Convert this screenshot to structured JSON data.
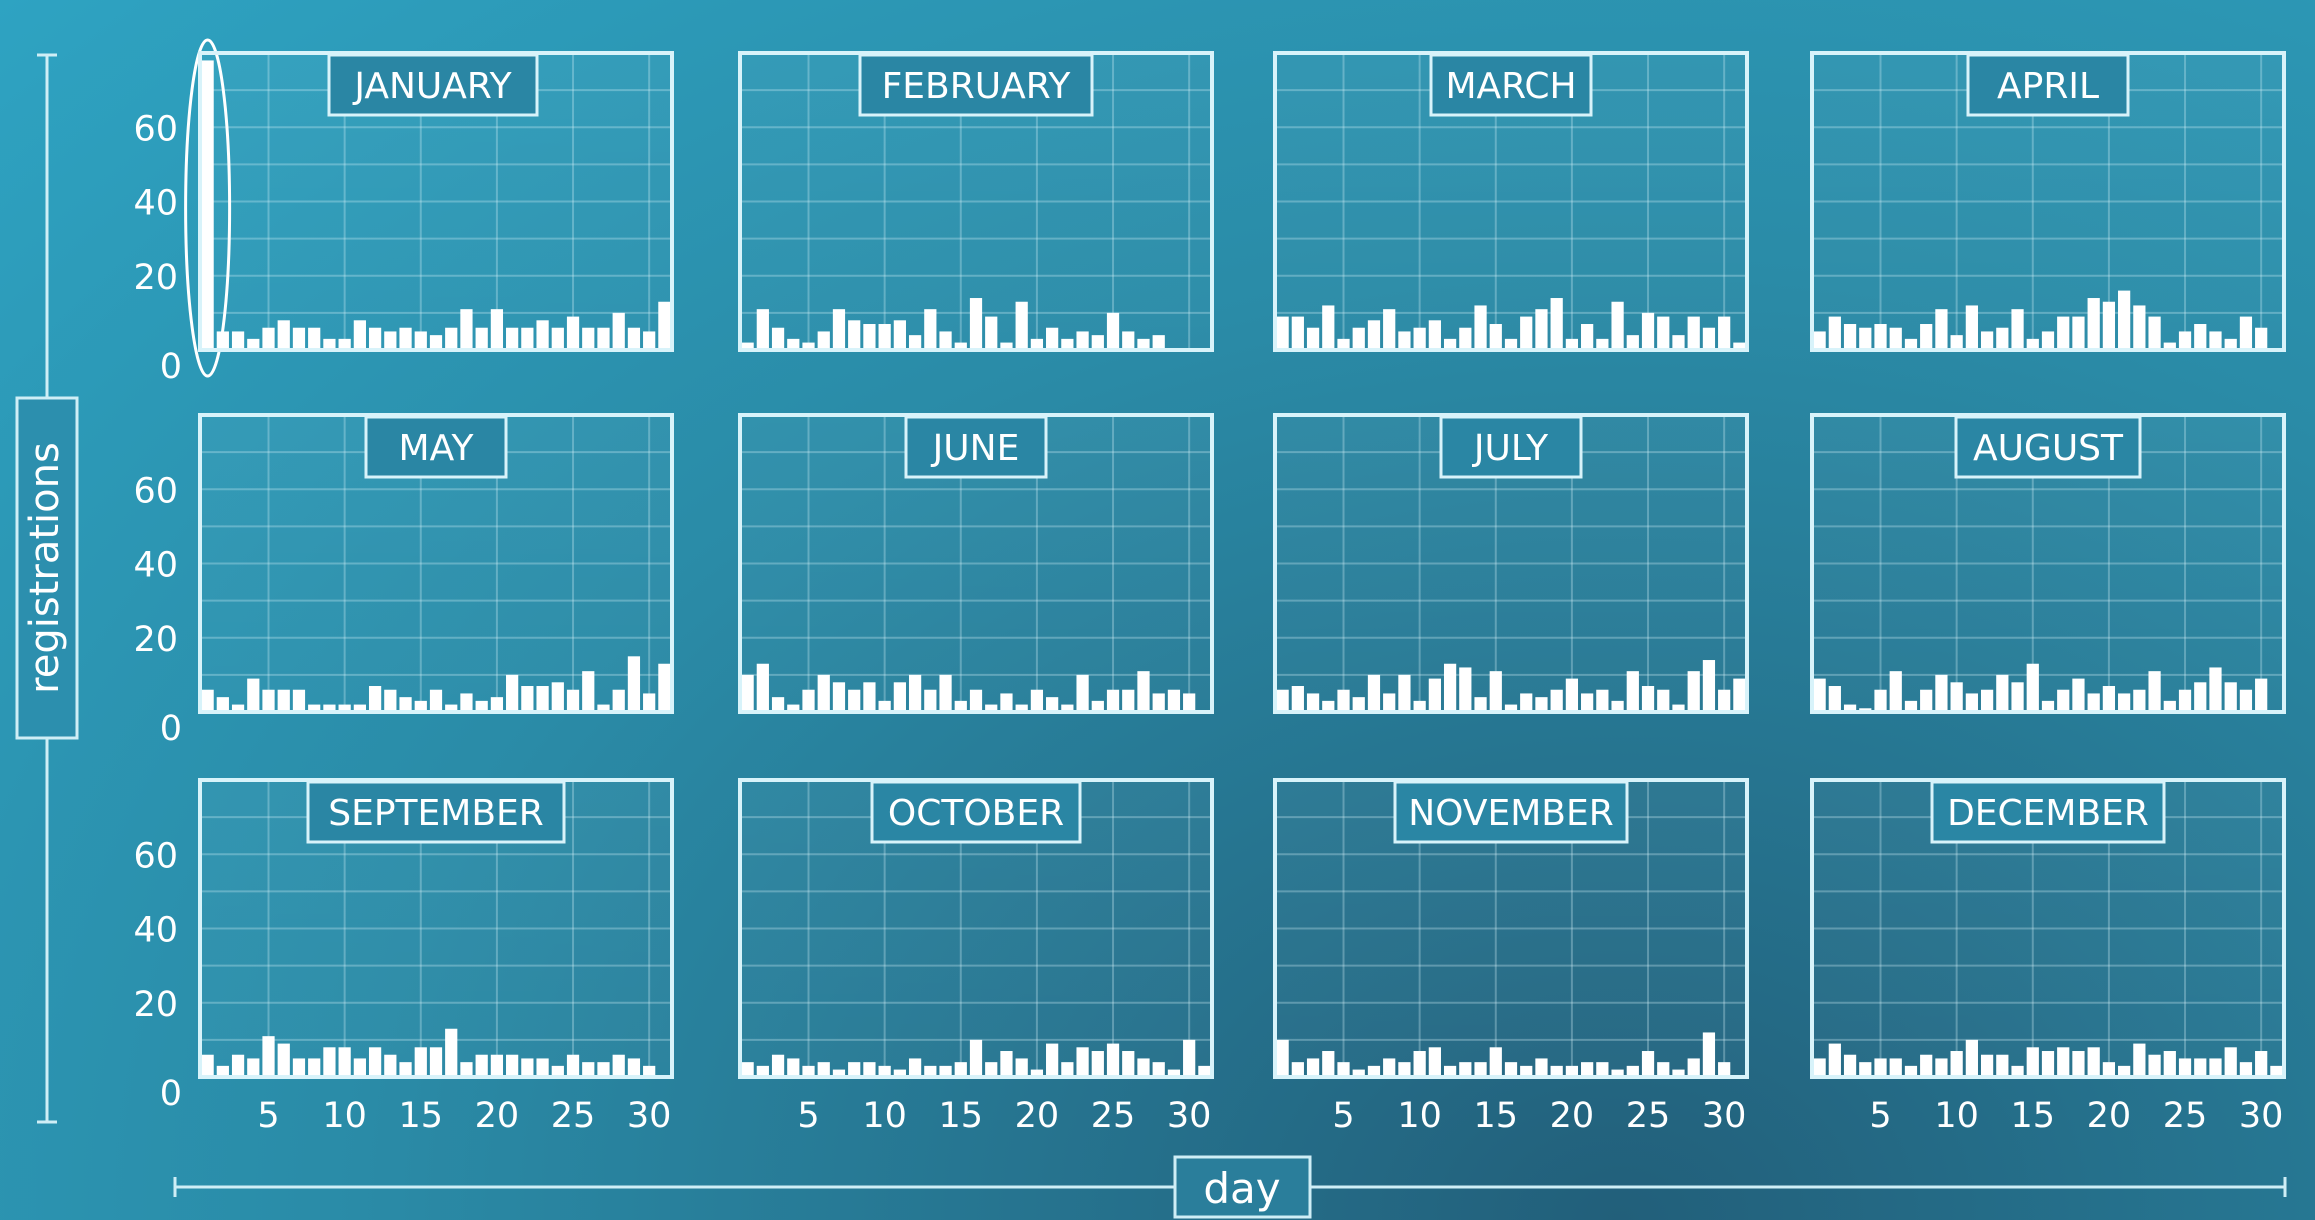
{
  "chart_data": {
    "type": "bar",
    "ylabel": "registrations",
    "xlabel": "day",
    "ylim": [
      0,
      80
    ],
    "yticks": [
      0,
      20,
      40,
      60
    ],
    "xticks": [
      5,
      10,
      15,
      20,
      25,
      30
    ],
    "grid": true,
    "panels": [
      {
        "title": "JANUARY",
        "days": 31,
        "values": [
          78,
          5,
          5,
          3,
          6,
          8,
          6,
          6,
          3,
          3,
          8,
          6,
          5,
          6,
          5,
          4,
          6,
          11,
          6,
          11,
          6,
          6,
          8,
          6,
          9,
          6,
          6,
          10,
          6,
          5,
          13
        ],
        "highlight_day": 1
      },
      {
        "title": "FEBRUARY",
        "days": 28,
        "values": [
          2,
          11,
          6,
          3,
          2,
          5,
          11,
          8,
          7,
          7,
          8,
          4,
          11,
          5,
          2,
          14,
          9,
          2,
          13,
          3,
          6,
          3,
          5,
          4,
          10,
          5,
          3,
          4
        ]
      },
      {
        "title": "MARCH",
        "days": 31,
        "values": [
          9,
          9,
          6,
          12,
          3,
          6,
          8,
          11,
          5,
          6,
          8,
          3,
          6,
          12,
          7,
          3,
          9,
          11,
          14,
          3,
          7,
          3,
          13,
          4,
          10,
          9,
          4,
          9,
          6,
          9,
          2
        ]
      },
      {
        "title": "APRIL",
        "days": 30,
        "values": [
          5,
          9,
          7,
          6,
          7,
          6,
          3,
          7,
          11,
          4,
          12,
          5,
          6,
          11,
          3,
          5,
          9,
          9,
          14,
          13,
          16,
          12,
          9,
          2,
          5,
          7,
          5,
          3,
          9,
          6
        ]
      },
      {
        "title": "MAY",
        "days": 31,
        "values": [
          6,
          4,
          2,
          9,
          6,
          6,
          6,
          2,
          2,
          2,
          2,
          7,
          6,
          4,
          3,
          6,
          2,
          5,
          3,
          4,
          10,
          7,
          7,
          8,
          6,
          11,
          2,
          6,
          15,
          5,
          13
        ]
      },
      {
        "title": "JUNE",
        "days": 30,
        "values": [
          10,
          13,
          4,
          2,
          6,
          10,
          8,
          6,
          8,
          3,
          8,
          10,
          6,
          10,
          3,
          6,
          2,
          5,
          2,
          6,
          4,
          2,
          10,
          3,
          6,
          6,
          11,
          5,
          6,
          5
        ]
      },
      {
        "title": "JULY",
        "days": 31,
        "values": [
          6,
          7,
          5,
          3,
          6,
          4,
          10,
          5,
          10,
          3,
          9,
          13,
          12,
          4,
          11,
          2,
          5,
          4,
          6,
          9,
          5,
          6,
          3,
          11,
          7,
          6,
          2,
          11,
          14,
          6,
          9
        ]
      },
      {
        "title": "AUGUST",
        "days": 30,
        "values": [
          9,
          7,
          2,
          1,
          6,
          11,
          3,
          6,
          10,
          8,
          5,
          6,
          10,
          8,
          13,
          3,
          6,
          9,
          5,
          7,
          5,
          6,
          11,
          3,
          6,
          8,
          12,
          8,
          6,
          9
        ]
      },
      {
        "title": "SEPTEMBER",
        "days": 30,
        "values": [
          6,
          3,
          6,
          5,
          11,
          9,
          5,
          5,
          8,
          8,
          5,
          8,
          6,
          4,
          8,
          8,
          13,
          4,
          6,
          6,
          6,
          5,
          5,
          3,
          6,
          4,
          4,
          6,
          5,
          3
        ]
      },
      {
        "title": "OCTOBER",
        "days": 31,
        "values": [
          4,
          3,
          6,
          5,
          3,
          4,
          2,
          4,
          4,
          3,
          2,
          5,
          3,
          3,
          4,
          10,
          4,
          7,
          5,
          2,
          9,
          4,
          8,
          7,
          9,
          7,
          5,
          4,
          2,
          10,
          3
        ]
      },
      {
        "title": "NOVEMBER",
        "days": 30,
        "values": [
          10,
          4,
          5,
          7,
          4,
          2,
          3,
          5,
          4,
          7,
          8,
          3,
          4,
          4,
          8,
          4,
          3,
          5,
          3,
          3,
          4,
          4,
          2,
          3,
          7,
          4,
          2,
          5,
          12,
          4
        ]
      },
      {
        "title": "DECEMBER",
        "days": 31,
        "values": [
          5,
          9,
          6,
          4,
          5,
          5,
          3,
          6,
          5,
          7,
          10,
          6,
          6,
          3,
          8,
          7,
          8,
          7,
          8,
          4,
          3,
          9,
          6,
          7,
          5,
          5,
          5,
          8,
          4,
          7,
          3
        ]
      }
    ]
  }
}
